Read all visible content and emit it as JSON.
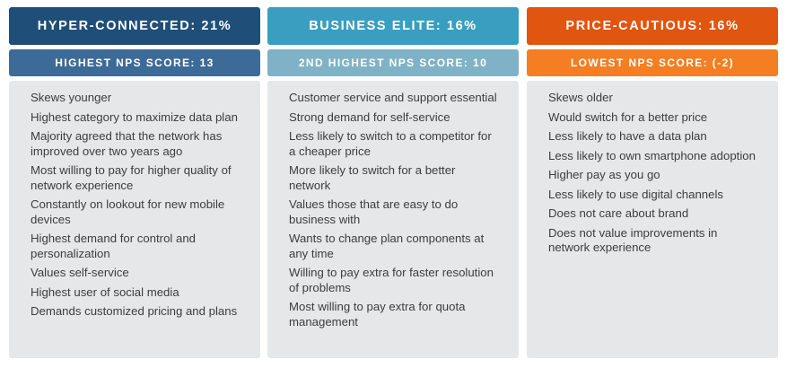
{
  "segments": [
    {
      "title": "HYPER-CONNECTED: 21%",
      "nps": "HIGHEST NPS SCORE: 13",
      "header_color": "#1f4e79",
      "subheader_color": "#3d6b98",
      "items": [
        "Skews younger",
        "Highest category to maximize data plan",
        "Majority agreed that the network has improved over two years ago",
        "Most willing to pay for higher quality of network experience",
        "Constantly on lookout for new mobile devices",
        "Highest demand for control and personalization",
        "Values self-service",
        "Highest user of social media",
        "Demands customized pricing and plans"
      ]
    },
    {
      "title": "BUSINESS ELITE: 16%",
      "nps": "2ND HIGHEST NPS SCORE: 10",
      "header_color": "#3a9ec0",
      "subheader_color": "#7fb2c7",
      "items": [
        "Customer service and support essential",
        "Strong demand for self-service",
        "Less likely to switch to a competitor for a cheaper price",
        "More likely to switch for a better network",
        "Values those that are easy to do business with",
        "Wants to change plan components at any time",
        "Willing to pay extra for faster resolution of problems",
        "Most willing to pay extra for quota management"
      ]
    },
    {
      "title": "PRICE-CAUTIOUS: 16%",
      "nps": "LOWEST NPS SCORE: (-2)",
      "header_color": "#e0550f",
      "subheader_color": "#f47e21",
      "items": [
        "Skews older",
        "Would switch for a better price",
        "Less likely to have a data plan",
        "Less likely to own smartphone adoption",
        "Higher pay as you go",
        "Less likely to use digital channels",
        "Does not care about brand",
        "Does not value improvements in network experience"
      ]
    }
  ]
}
